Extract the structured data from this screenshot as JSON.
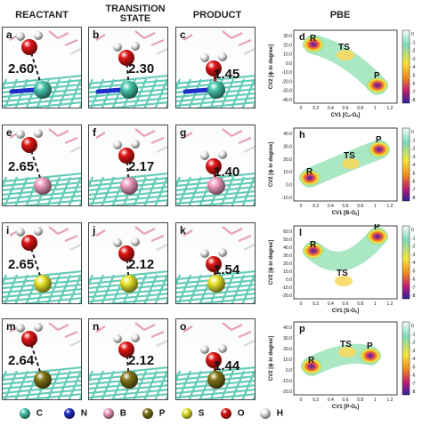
{
  "headers": {
    "reactant": "REACTANT",
    "transition_state": "TRANSITION STATE",
    "product": "PRODUCT",
    "pbe": "PBE"
  },
  "rows": [
    {
      "metal_color": "#46c3aa",
      "panels": [
        {
          "label": "a",
          "distance": "2.60"
        },
        {
          "label": "b",
          "distance": "2.30"
        },
        {
          "label": "c",
          "distance": "1.45"
        }
      ],
      "plot": {
        "label": "d",
        "ylabel": "CV2 [ϕ in degree]",
        "xlabel": "CV1 [Cₐ-Oₐ]",
        "yticks": [
          "30.0",
          "20.0",
          "10.0",
          "0.0",
          "-10.0",
          "-20.0",
          "-30.0",
          "-40.0"
        ],
        "xticks": [
          "0",
          "0.2",
          "0.4",
          "0.6",
          "0.8",
          "1",
          "1.2"
        ],
        "R": "R",
        "TS": "TS",
        "P": "P"
      }
    },
    {
      "metal_color": "#f19cc0",
      "panels": [
        {
          "label": "e",
          "distance": "2.65"
        },
        {
          "label": "f",
          "distance": "2.17"
        },
        {
          "label": "g",
          "distance": "1.40"
        }
      ],
      "plot": {
        "label": "h",
        "ylabel": "CV2 [ϕ in degree]",
        "xlabel": "CV1 [B-Oₐ]",
        "yticks": [
          "40.0",
          "30.0",
          "20.0",
          "10.0",
          "0.0",
          "-10.0"
        ],
        "xticks": [
          "0",
          "0.2",
          "0.4",
          "0.6",
          "0.8",
          "1",
          "1.2"
        ],
        "R": "R",
        "TS": "TS",
        "P": "P"
      }
    },
    {
      "metal_color": "#e8e42a",
      "panels": [
        {
          "label": "i",
          "distance": "2.65"
        },
        {
          "label": "j",
          "distance": "2.12"
        },
        {
          "label": "k",
          "distance": "1.54"
        }
      ],
      "plot": {
        "label": "l",
        "ylabel": "CV2 [ϕ in degree]",
        "xlabel": "CV1 [S-Oₐ]",
        "yticks": [
          "60.0",
          "50.0",
          "40.0",
          "30.0",
          "20.0",
          "10.0",
          "0.0",
          "-10.0",
          "-20.0"
        ],
        "xticks": [
          "0",
          "0.2",
          "0.4",
          "0.6",
          "0.8",
          "1",
          "1.2"
        ],
        "R": "R",
        "TS": "TS",
        "P": "P"
      }
    },
    {
      "metal_color": "#7f7318",
      "panels": [
        {
          "label": "m",
          "distance": "2.64"
        },
        {
          "label": "n",
          "distance": "2.12"
        },
        {
          "label": "o",
          "distance": "1.44"
        }
      ],
      "plot": {
        "label": "p",
        "ylabel": "CV2 [ϕ in degree]",
        "xlabel": "CV1 [P-Oₐ]",
        "yticks": [
          "40.0",
          "30.0",
          "20.0",
          "10.0",
          "0.0",
          "-10.0",
          "-20.0"
        ],
        "xticks": [
          "0",
          "0.2",
          "0.4",
          "0.6",
          "0.8",
          "1",
          "1.2"
        ],
        "R": "R",
        "TS": "TS",
        "P": "P"
      }
    }
  ],
  "colorbar_ticks": [
    "0",
    "-1",
    "-2",
    "-3",
    "-4",
    "-5",
    "-6",
    "-7",
    "-8"
  ],
  "legend": [
    {
      "symbol": "C",
      "color": "#46c3aa"
    },
    {
      "symbol": "N",
      "color": "#1e2ec8"
    },
    {
      "symbol": "B",
      "color": "#f19cc0"
    },
    {
      "symbol": "P",
      "color": "#7f7318"
    },
    {
      "symbol": "S",
      "color": "#e8e42a"
    },
    {
      "symbol": "O",
      "color": "#e01515"
    },
    {
      "symbol": "H",
      "color": "#f0f0f0"
    }
  ]
}
